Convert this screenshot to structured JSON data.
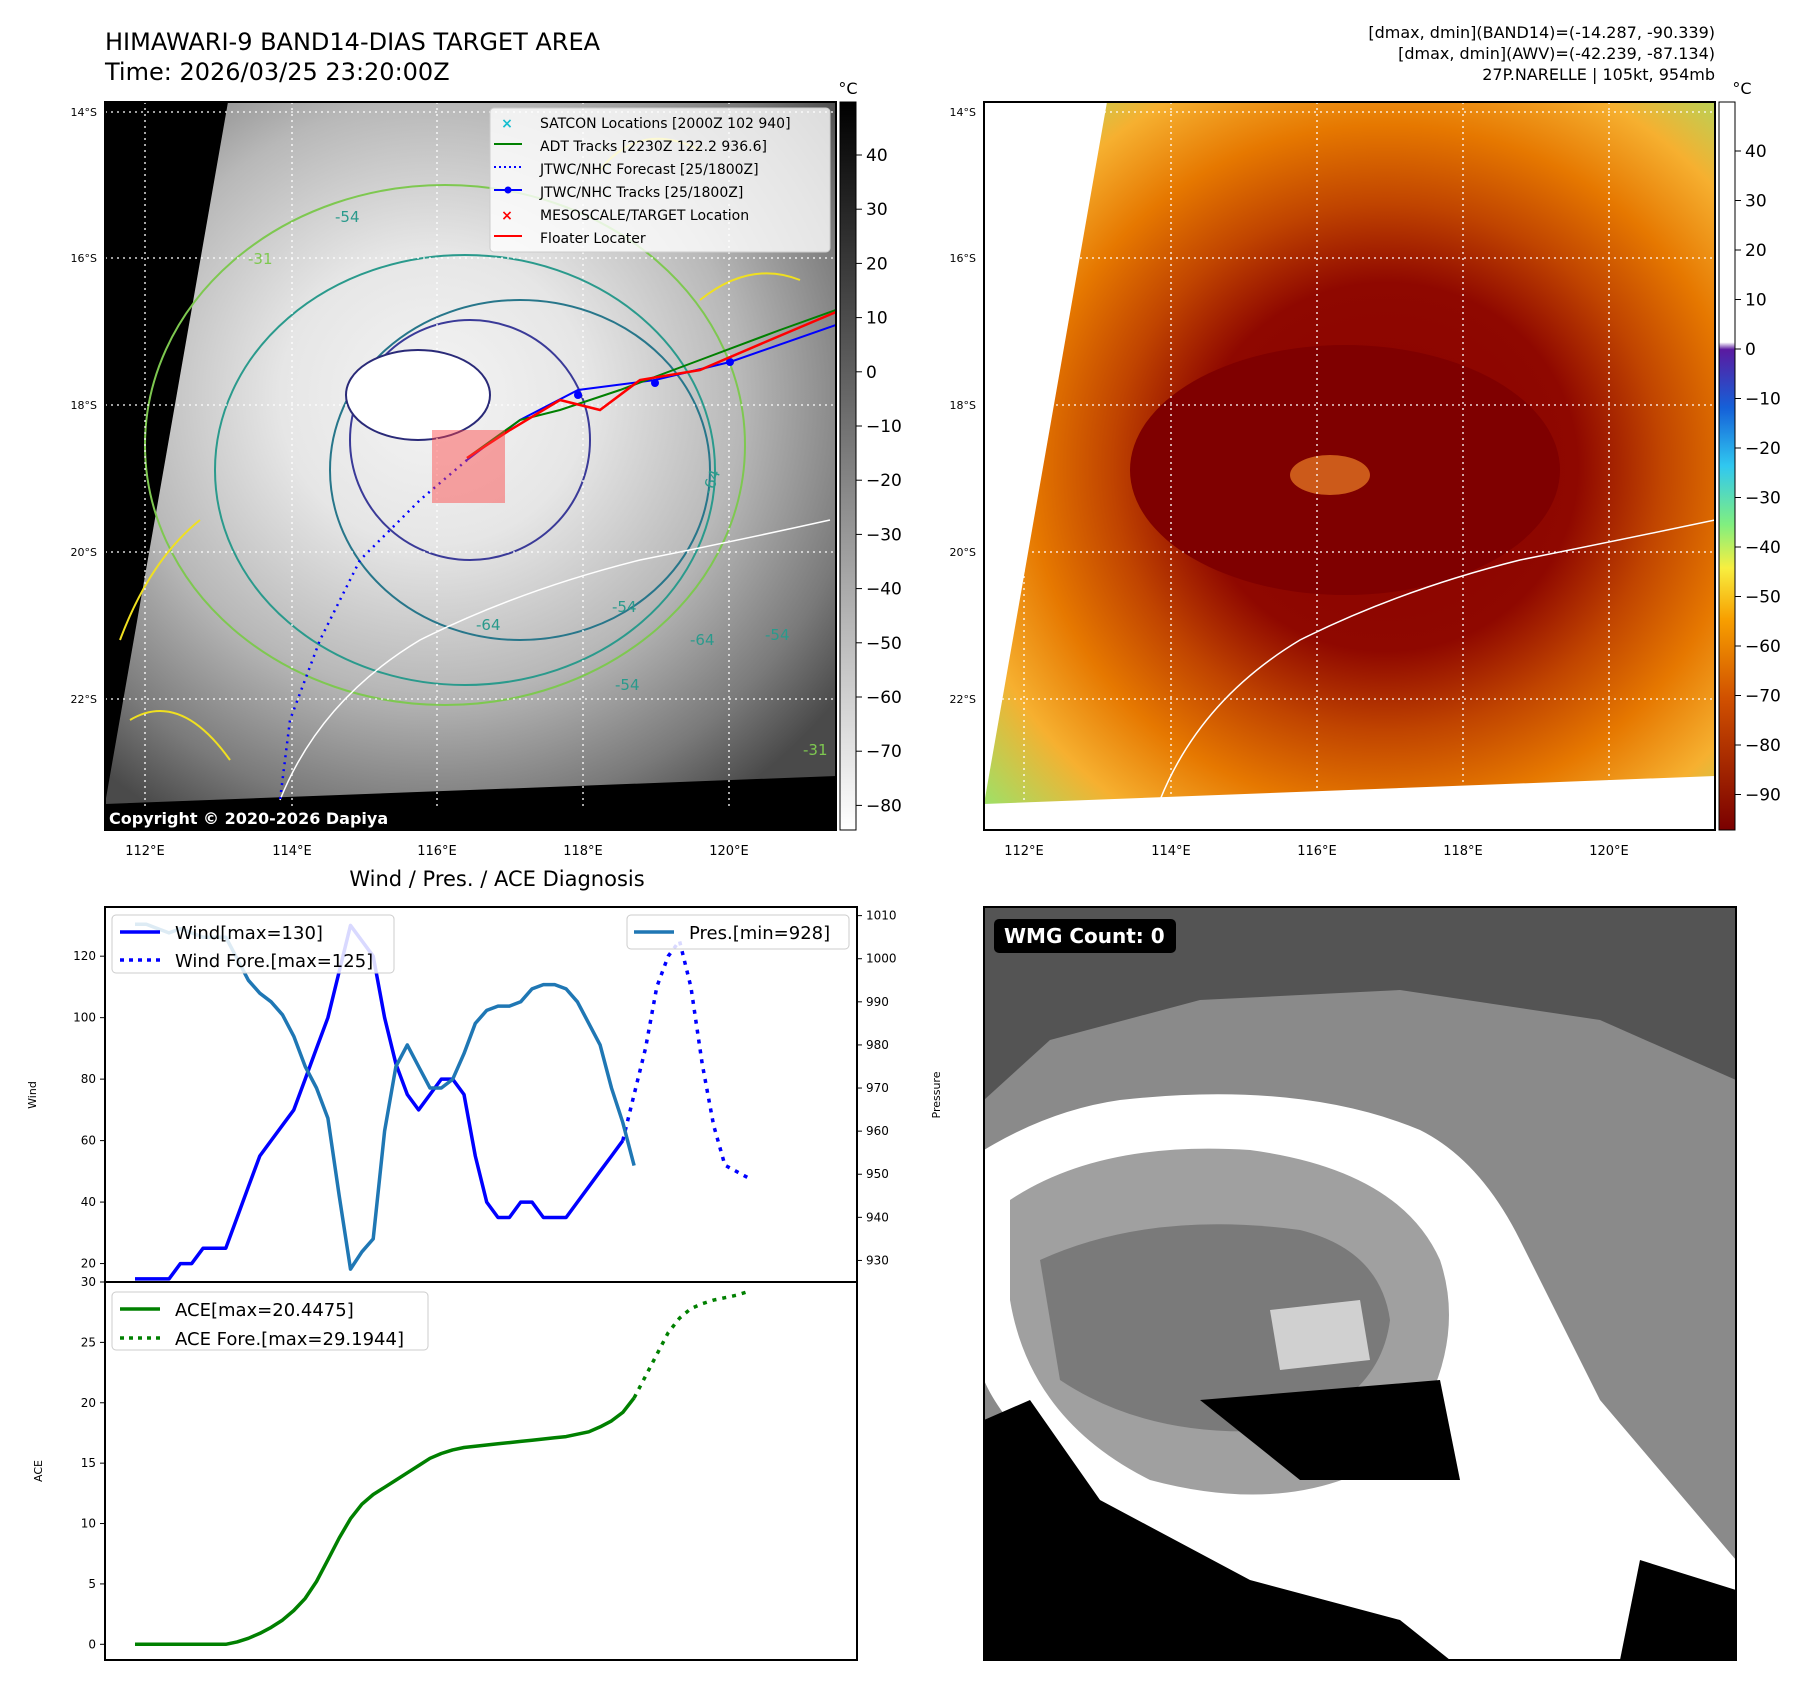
{
  "title": {
    "line1": "HIMAWARI-9 BAND14-DIAS TARGET AREA",
    "line2": "Time: 2026/03/25 23:20:00Z"
  },
  "header_right": {
    "line1": "[dmax, dmin](BAND14)=(-14.287, -90.339)",
    "line2": "[dmax, dmin](AWV)=(-42.239, -87.134)",
    "line3": "27P.NARELLE | 105kt, 954mb"
  },
  "copyright": "Copyright © 2020-2026 Dapiya",
  "lat_ticks": [
    "14°S",
    "16°S",
    "18°S",
    "20°S",
    "22°S"
  ],
  "lon_ticks": [
    "112°E",
    "114°E",
    "116°E",
    "118°E",
    "120°E"
  ],
  "colors": {
    "wind": "#0000ff",
    "pressure": "#1f77b4",
    "ace": "#008000",
    "floater": "#ff0000",
    "satcon": "#17becf",
    "adt": "#008000"
  },
  "map_left": {
    "colorbar_unit": "°C",
    "colorbar_ticks": [
      "40",
      "30",
      "20",
      "10",
      "0",
      "−10",
      "−20",
      "−30",
      "−40",
      "−50",
      "−60",
      "−70",
      "−80"
    ],
    "contour_labels": [
      "-54",
      "-54",
      "-64",
      "-64",
      "-54",
      "-54",
      "-31",
      "-31",
      "-64"
    ],
    "legend": [
      {
        "label": "SATCON Locations [2000Z 102 940]",
        "icon": "x-cyan"
      },
      {
        "label": "ADT Tracks [2230Z 122.2 936.6]",
        "icon": "line-green"
      },
      {
        "label": "JTWC/NHC Forecast [25/1800Z]",
        "icon": "dotted-blue"
      },
      {
        "label": "JTWC/NHC Tracks [25/1800Z]",
        "icon": "line-dot-blue"
      },
      {
        "label": "MESOSCALE/TARGET Location",
        "icon": "x-red"
      },
      {
        "label": "Floater Locater",
        "icon": "line-red"
      }
    ]
  },
  "map_right": {
    "colorbar_unit": "°C",
    "colorbar_ticks": [
      "40",
      "30",
      "20",
      "10",
      "0",
      "−10",
      "−20",
      "−30",
      "−40",
      "−50",
      "−60",
      "−70",
      "−80",
      "−90"
    ]
  },
  "wmg": {
    "label": "WMG Count: 0"
  },
  "chart_data": [
    {
      "type": "line",
      "title": "Wind / Pres. / ACE Diagnosis",
      "ylabel": "Wind",
      "y2label": "Pressure",
      "ylim": [
        14,
        136
      ],
      "y2lim": [
        925,
        1012
      ],
      "yticks": [
        "20",
        "40",
        "60",
        "80",
        "100",
        "120"
      ],
      "y2ticks": [
        "930",
        "940",
        "950",
        "960",
        "970",
        "980",
        "990",
        "1000",
        "1010"
      ],
      "x_index_range": [
        0,
        61
      ],
      "series": [
        {
          "name": "Wind[max=130]",
          "axis": "left",
          "style": "solid",
          "x": [
            0,
            1,
            2,
            3,
            4,
            5,
            6,
            7,
            8,
            9,
            10,
            11,
            12,
            13,
            14,
            15,
            16,
            17,
            18,
            19,
            20,
            21,
            22,
            23,
            24,
            25,
            26,
            27,
            28,
            29,
            30,
            31,
            32,
            33,
            34,
            35,
            36,
            37,
            38,
            39,
            40,
            41,
            42,
            43
          ],
          "values": [
            15,
            15,
            15,
            15,
            20,
            20,
            25,
            25,
            25,
            35,
            45,
            55,
            60,
            65,
            70,
            80,
            90,
            100,
            115,
            130,
            125,
            120,
            100,
            85,
            75,
            70,
            75,
            80,
            80,
            75,
            55,
            40,
            35,
            35,
            40,
            40,
            35,
            35,
            35,
            40,
            45,
            50,
            55,
            60
          ]
        },
        {
          "name": "Wind Fore.[max=125]",
          "axis": "left",
          "style": "dotted",
          "x": [
            43,
            44,
            45,
            46,
            47,
            48,
            49,
            50,
            51,
            52,
            53,
            54
          ],
          "values": [
            60,
            75,
            90,
            110,
            120,
            125,
            110,
            85,
            65,
            52,
            50,
            48
          ]
        },
        {
          "name": "Pres.[min=928]",
          "axis": "right",
          "style": "solid",
          "x": [
            0,
            1,
            2,
            3,
            4,
            5,
            6,
            7,
            8,
            9,
            10,
            11,
            12,
            13,
            14,
            15,
            16,
            17,
            18,
            19,
            20,
            21,
            22,
            23,
            24,
            25,
            26,
            27,
            28,
            29,
            30,
            31,
            32,
            33,
            34,
            35,
            36,
            37,
            38,
            39,
            40,
            41,
            42,
            43,
            44
          ],
          "values": [
            1008,
            1008,
            1007,
            1006,
            1007,
            1006,
            1005,
            1005,
            1005,
            1000,
            995,
            992,
            990,
            987,
            982,
            975,
            970,
            963,
            945,
            928,
            932,
            935,
            960,
            975,
            980,
            975,
            970,
            970,
            972,
            978,
            985,
            988,
            989,
            989,
            990,
            993,
            994,
            994,
            993,
            990,
            985,
            980,
            970,
            962,
            952
          ]
        },
        {
          "name": "ACE[max=20.4475]",
          "axis": "ace",
          "style": "solid",
          "x": [
            0,
            1,
            2,
            3,
            4,
            5,
            6,
            7,
            8,
            9,
            10,
            11,
            12,
            13,
            14,
            15,
            16,
            17,
            18,
            19,
            20,
            21,
            22,
            23,
            24,
            25,
            26,
            27,
            28,
            29,
            30,
            31,
            32,
            33,
            34,
            35,
            36,
            37,
            38,
            39,
            40,
            41,
            42,
            43,
            44
          ],
          "values": [
            0,
            0,
            0,
            0,
            0,
            0,
            0,
            0,
            0,
            0.2,
            0.5,
            0.9,
            1.4,
            2.0,
            2.8,
            3.8,
            5.2,
            7.0,
            8.8,
            10.4,
            11.6,
            12.4,
            13.0,
            13.6,
            14.2,
            14.8,
            15.4,
            15.8,
            16.1,
            16.3,
            16.4,
            16.5,
            16.6,
            16.7,
            16.8,
            16.9,
            17.0,
            17.1,
            17.2,
            17.4,
            17.6,
            18.0,
            18.5,
            19.2,
            20.4
          ]
        },
        {
          "name": "ACE Fore.[max=29.1944]",
          "axis": "ace",
          "style": "dotted",
          "x": [
            44,
            45,
            46,
            47,
            48,
            49,
            50,
            51,
            52,
            53,
            54
          ],
          "values": [
            20.4,
            22.2,
            24.0,
            25.8,
            27.0,
            27.8,
            28.2,
            28.5,
            28.7,
            28.9,
            29.2
          ]
        }
      ]
    },
    {
      "type": "line",
      "title": "",
      "ylabel": "ACE",
      "ylim": [
        -1.3,
        30
      ],
      "yticks": [
        "0",
        "5",
        "10",
        "15",
        "20",
        "25",
        "30"
      ]
    }
  ]
}
